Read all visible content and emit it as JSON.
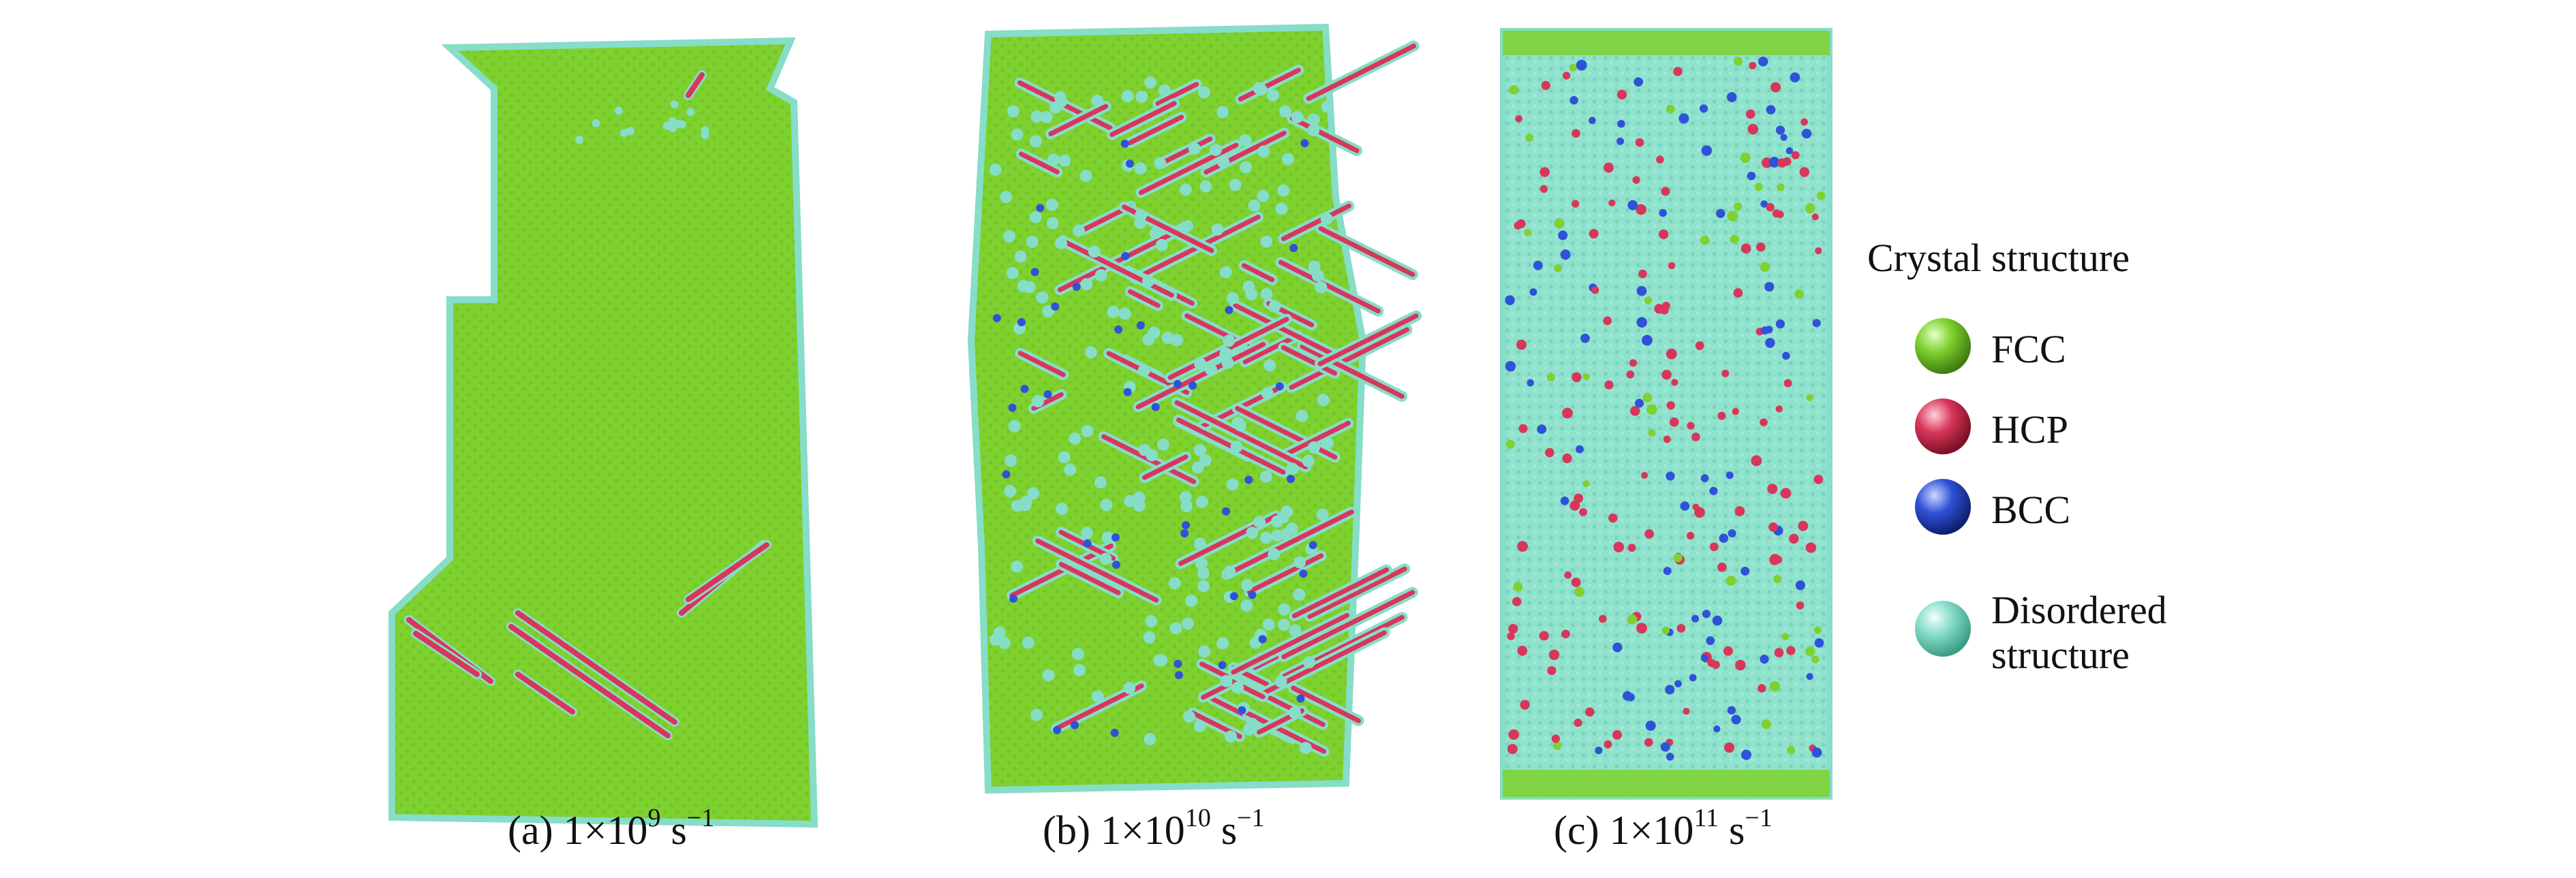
{
  "panels": [
    {
      "id": "a",
      "caption_prefix": "(a) 1×10",
      "exponent": "9",
      "unit": " s",
      "unit_exp": "−1"
    },
    {
      "id": "b",
      "caption_prefix": "(b) 1×10",
      "exponent": "10",
      "unit": " s",
      "unit_exp": "−1"
    },
    {
      "id": "c",
      "caption_prefix": "(c) 1×10",
      "exponent": "11",
      "unit": " s",
      "unit_exp": "−1"
    }
  ],
  "legend": {
    "title": "Crystal structure",
    "items": [
      {
        "label": "FCC",
        "color": "#7ed12e"
      },
      {
        "label": "HCP",
        "color": "#d8365a"
      },
      {
        "label": "BCC",
        "color": "#2f52d8"
      },
      {
        "label_line1": "Disordered",
        "label_line2": "structure",
        "color": "#86ddc8"
      }
    ]
  }
}
